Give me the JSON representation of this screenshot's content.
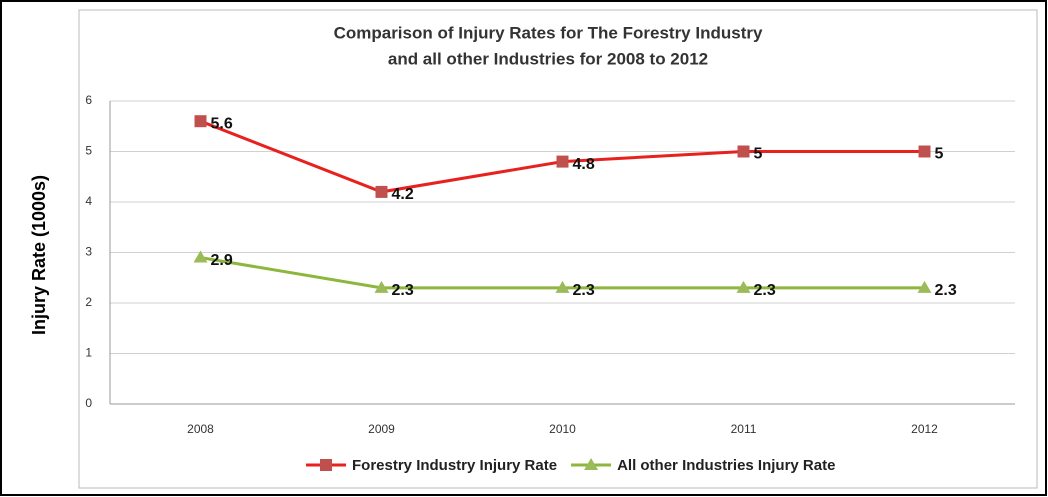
{
  "chart_data": {
    "type": "line",
    "title": [
      "Comparison of Injury Rates for The Forestry Industry",
      "and all other Industries for 2008 to 2012"
    ],
    "y_label": "Injury Rate (1000s)",
    "categories": [
      "2008",
      "2009",
      "2010",
      "2011",
      "2012"
    ],
    "series": [
      {
        "name": "Forestry Industry Injury Rate",
        "color": "#e8211e",
        "marker_color": "#c0504d",
        "marker": "square",
        "values": [
          5.6,
          4.2,
          4.8,
          5,
          5
        ]
      },
      {
        "name": "All other Industries Injury Rate",
        "color": "#8db63c",
        "marker_color": "#9bbb59",
        "marker": "triangle",
        "values": [
          2.9,
          2.3,
          2.3,
          2.3,
          2.3
        ]
      }
    ],
    "ylim": [
      0,
      6
    ],
    "yticks": [
      0,
      1,
      2,
      3,
      4,
      5,
      6
    ],
    "grid": true,
    "legend": "bottom"
  }
}
